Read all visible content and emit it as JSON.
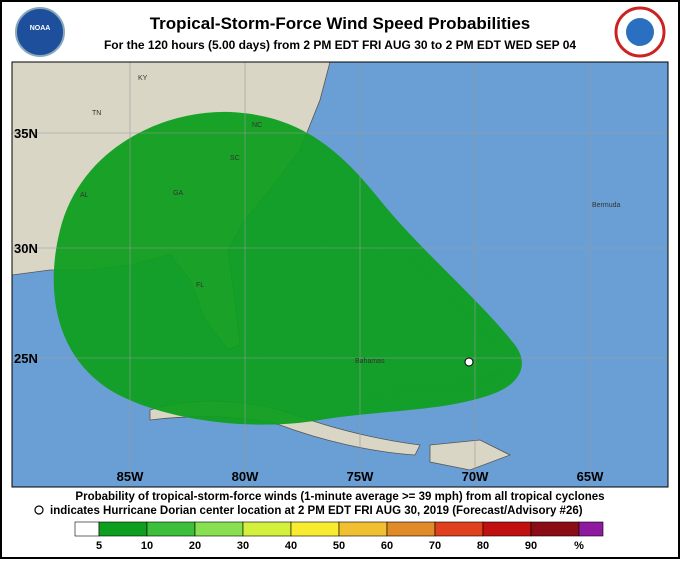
{
  "header": {
    "title": "Tropical-Storm-Force Wind Speed Probabilities",
    "subtitle": "For the 120 hours (5.00 days) from 2 PM EDT FRI AUG 30 to 2 PM EDT WED SEP 04",
    "logo_left": "NOAA"
  },
  "map": {
    "latitude_labels": [
      "35N",
      "30N",
      "25N"
    ],
    "longitude_labels": [
      "85W",
      "80W",
      "75W",
      "70W",
      "65W"
    ],
    "place_labels": [
      "KY",
      "TN",
      "NC",
      "SC",
      "GA",
      "AL",
      "FL",
      "Bermuda",
      "Bahamas"
    ]
  },
  "footer": {
    "line1": "Probability of tropical-storm-force winds (1-minute average >= 39 mph) from all tropical cyclones",
    "line2": "indicates Hurricane Dorian center location at 2 PM EDT FRI AUG 30, 2019 (Forecast/Advisory #26)"
  },
  "legend": {
    "labels": [
      5,
      10,
      20,
      30,
      40,
      50,
      60,
      70,
      80,
      90,
      "%"
    ]
  }
}
